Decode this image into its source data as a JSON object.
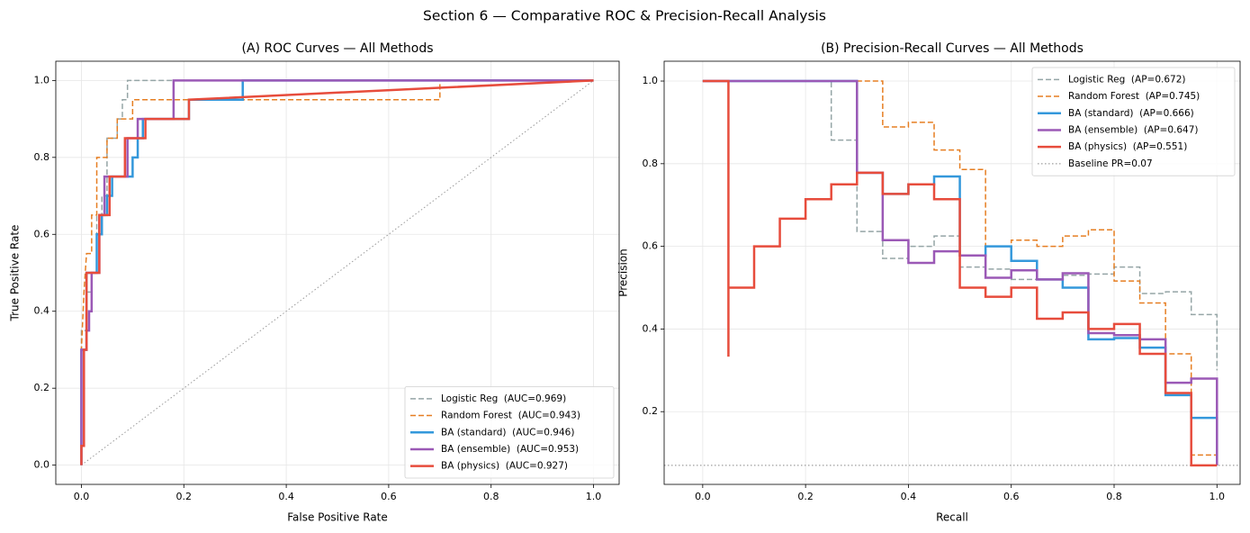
{
  "title": "Section 6 — Comparative ROC & Precision-Recall Analysis",
  "chart_data": [
    {
      "type": "line",
      "title": "(A) ROC Curves — All Methods",
      "x_label": "False Positive Rate",
      "y_label": "True Positive Rate",
      "xlim": [
        -0.05,
        1.05
      ],
      "ylim": [
        -0.05,
        1.05
      ],
      "xticks": [
        {
          "value": 0,
          "label": "0.0"
        },
        0.2,
        0.4,
        0.6,
        0.8,
        {
          "value": 1,
          "label": "1.0"
        }
      ],
      "yticks": [
        {
          "value": 0,
          "label": "0.0"
        },
        0.2,
        0.4,
        0.6,
        0.8,
        {
          "value": 1,
          "label": "1.0"
        }
      ],
      "grid": true,
      "legend": "lower right",
      "series": [
        {
          "x": [
            0,
            1
          ],
          "values": [
            0,
            1
          ],
          "color": "#999999",
          "dash": "dotted",
          "width": 1
        },
        {
          "name": "Logistic Reg  (AUC=0.969)",
          "color": "#95a5a6",
          "dash": "dashed",
          "width": 1.5,
          "x": [
            0,
            0,
            0.01,
            0.01,
            0.02,
            0.02,
            0.03,
            0.03,
            0.04,
            0.04,
            0.05,
            0.05,
            0.07,
            0.07,
            0.08,
            0.08,
            0.09,
            0.09,
            1
          ],
          "values": [
            0,
            0.35,
            0.35,
            0.45,
            0.45,
            0.5,
            0.5,
            0.65,
            0.65,
            0.7,
            0.7,
            0.85,
            0.85,
            0.9,
            0.9,
            0.95,
            0.95,
            1,
            1
          ]
        },
        {
          "name": "Random Forest  (AUC=0.943)",
          "color": "#e67e22",
          "dash": "dashed",
          "width": 1.5,
          "x": [
            0,
            0,
            0.005,
            0.01,
            0.02,
            0.02,
            0.03,
            0.03,
            0.05,
            0.05,
            0.07,
            0.07,
            0.1,
            0.1,
            0.7,
            0.7,
            1
          ],
          "values": [
            0,
            0.3,
            0.45,
            0.55,
            0.55,
            0.65,
            0.65,
            0.8,
            0.8,
            0.85,
            0.85,
            0.9,
            0.9,
            0.95,
            0.95,
            1,
            1
          ]
        },
        {
          "name": "BA (standard)  (AUC=0.946)",
          "color": "#3498db",
          "dash": "solid",
          "width": 2.5,
          "x": [
            0,
            0,
            0.01,
            0.01,
            0.03,
            0.03,
            0.04,
            0.04,
            0.05,
            0.05,
            0.06,
            0.06,
            0.1,
            0.1,
            0.11,
            0.11,
            0.12,
            0.12,
            0.21,
            0.21,
            0.315,
            0.315,
            1
          ],
          "values": [
            0,
            0.3,
            0.3,
            0.5,
            0.5,
            0.6,
            0.6,
            0.65,
            0.65,
            0.7,
            0.7,
            0.75,
            0.75,
            0.8,
            0.8,
            0.85,
            0.85,
            0.9,
            0.9,
            0.95,
            0.95,
            1,
            1
          ]
        },
        {
          "name": "BA (ensemble)  (AUC=0.953)",
          "color": "#9b59b6",
          "dash": "solid",
          "width": 2.5,
          "x": [
            0,
            0,
            0.01,
            0.01,
            0.015,
            0.015,
            0.02,
            0.02,
            0.035,
            0.035,
            0.045,
            0.045,
            0.09,
            0.09,
            0.11,
            0.11,
            0.18,
            0.18,
            1
          ],
          "values": [
            0,
            0.3,
            0.3,
            0.35,
            0.35,
            0.4,
            0.4,
            0.5,
            0.5,
            0.65,
            0.65,
            0.75,
            0.75,
            0.85,
            0.85,
            0.9,
            0.9,
            1,
            1
          ]
        },
        {
          "name": "BA (physics)  (AUC=0.927)",
          "color": "#e74c3c",
          "dash": "solid",
          "width": 2.5,
          "x": [
            0,
            0,
            0.005,
            0.005,
            0.01,
            0.01,
            0.035,
            0.035,
            0.055,
            0.055,
            0.085,
            0.085,
            0.125,
            0.125,
            0.21,
            0.21,
            1
          ],
          "values": [
            0,
            0.05,
            0.05,
            0.3,
            0.3,
            0.5,
            0.5,
            0.65,
            0.65,
            0.75,
            0.75,
            0.85,
            0.85,
            0.9,
            0.9,
            0.95,
            1
          ]
        }
      ]
    },
    {
      "type": "line",
      "title": "(B) Precision-Recall Curves — All Methods",
      "x_label": "Recall",
      "y_label": "Precision",
      "xlim": [
        -0.075,
        1.045
      ],
      "ylim": [
        0.024,
        1.048
      ],
      "xticks": [
        {
          "value": 0,
          "label": "0.0"
        },
        0.2,
        0.4,
        0.6,
        0.8,
        {
          "value": 1,
          "label": "1.0"
        }
      ],
      "yticks": [
        0.2,
        0.4,
        0.6,
        0.8,
        {
          "value": 1,
          "label": "1.0"
        }
      ],
      "grid": true,
      "legend": "upper right",
      "baseline": 0.07,
      "baseline_label": "Baseline PR=0.07",
      "baseline_color": "#888888",
      "series": [
        {
          "name": "Logistic Reg  (AP=0.672)",
          "color": "#95a5a6",
          "dash": "dashed",
          "width": 1.5,
          "x": [
            0,
            0.25,
            0.25,
            0.3,
            0.3,
            0.35,
            0.35,
            0.4,
            0.4,
            0.45,
            0.45,
            0.5,
            0.5,
            0.55,
            0.55,
            0.6,
            0.6,
            0.65,
            0.65,
            0.7,
            0.7,
            0.75,
            0.75,
            0.8,
            0.8,
            0.85,
            0.85,
            0.9,
            0.9,
            0.95,
            0.95,
            1,
            1
          ],
          "values": [
            1,
            1,
            0.857,
            0.857,
            0.636,
            0.636,
            0.571,
            0.571,
            0.6,
            0.6,
            0.625,
            0.625,
            0.55,
            0.55,
            0.545,
            0.545,
            0.52,
            0.52,
            0.52,
            0.52,
            0.53,
            0.53,
            0.533,
            0.533,
            0.55,
            0.55,
            0.486,
            0.486,
            0.49,
            0.49,
            0.435,
            0.435,
            0.3
          ]
        },
        {
          "name": "Random Forest  (AP=0.745)",
          "color": "#e67e22",
          "dash": "dashed",
          "width": 1.5,
          "x": [
            0,
            0.35,
            0.35,
            0.4,
            0.4,
            0.45,
            0.45,
            0.5,
            0.5,
            0.55,
            0.55,
            0.6,
            0.6,
            0.65,
            0.65,
            0.7,
            0.7,
            0.75,
            0.75,
            0.8,
            0.8,
            0.85,
            0.85,
            0.9,
            0.9,
            0.95,
            0.95,
            1,
            1
          ],
          "values": [
            1,
            1,
            0.889,
            0.889,
            0.9,
            0.9,
            0.833,
            0.833,
            0.786,
            0.786,
            0.6,
            0.6,
            0.615,
            0.615,
            0.6,
            0.6,
            0.625,
            0.625,
            0.64,
            0.64,
            0.516,
            0.516,
            0.463,
            0.463,
            0.34,
            0.34,
            0.095,
            0.095,
            0.07
          ]
        },
        {
          "name": "BA (standard)  (AP=0.666)",
          "color": "#3498db",
          "dash": "solid",
          "width": 2.5,
          "x": [
            0,
            0.3,
            0.3,
            0.35,
            0.35,
            0.4,
            0.4,
            0.45,
            0.45,
            0.5,
            0.5,
            0.55,
            0.55,
            0.6,
            0.6,
            0.65,
            0.65,
            0.7,
            0.7,
            0.75,
            0.75,
            0.8,
            0.8,
            0.85,
            0.85,
            0.9,
            0.9,
            0.95,
            0.95,
            1,
            1
          ],
          "values": [
            1,
            1,
            0.778,
            0.778,
            0.727,
            0.727,
            0.75,
            0.75,
            0.769,
            0.769,
            0.578,
            0.578,
            0.6,
            0.6,
            0.565,
            0.565,
            0.52,
            0.52,
            0.5,
            0.5,
            0.375,
            0.375,
            0.378,
            0.378,
            0.355,
            0.355,
            0.24,
            0.24,
            0.185,
            0.185,
            0.07
          ]
        },
        {
          "name": "BA (ensemble)  (AP=0.647)",
          "color": "#9b59b6",
          "dash": "solid",
          "width": 2.5,
          "x": [
            0,
            0.3,
            0.3,
            0.35,
            0.35,
            0.4,
            0.4,
            0.45,
            0.45,
            0.5,
            0.5,
            0.55,
            0.55,
            0.6,
            0.6,
            0.65,
            0.65,
            0.7,
            0.7,
            0.75,
            0.75,
            0.8,
            0.8,
            0.85,
            0.85,
            0.9,
            0.9,
            0.95,
            0.95,
            1,
            1
          ],
          "values": [
            1,
            1,
            0.778,
            0.778,
            0.615,
            0.615,
            0.56,
            0.56,
            0.588,
            0.588,
            0.578,
            0.578,
            0.524,
            0.524,
            0.542,
            0.542,
            0.52,
            0.52,
            0.535,
            0.535,
            0.39,
            0.39,
            0.385,
            0.385,
            0.375,
            0.375,
            0.27,
            0.27,
            0.28,
            0.28,
            0.07
          ]
        },
        {
          "name": "BA (physics)  (AP=0.551)",
          "color": "#e74c3c",
          "dash": "solid",
          "width": 2.5,
          "x": [
            0,
            0.05,
            0.05,
            0.05,
            0.1,
            0.1,
            0.15,
            0.15,
            0.2,
            0.2,
            0.25,
            0.25,
            0.3,
            0.3,
            0.35,
            0.35,
            0.4,
            0.4,
            0.45,
            0.45,
            0.5,
            0.5,
            0.55,
            0.55,
            0.6,
            0.6,
            0.65,
            0.65,
            0.7,
            0.7,
            0.75,
            0.75,
            0.8,
            0.8,
            0.85,
            0.85,
            0.9,
            0.9,
            0.95,
            0.95,
            1
          ],
          "values": [
            1,
            1,
            0.333,
            0.5,
            0.5,
            0.6,
            0.6,
            0.667,
            0.667,
            0.714,
            0.714,
            0.75,
            0.75,
            0.778,
            0.778,
            0.727,
            0.727,
            0.75,
            0.75,
            0.714,
            0.714,
            0.5,
            0.5,
            0.478,
            0.478,
            0.5,
            0.5,
            0.425,
            0.425,
            0.44,
            0.44,
            0.4,
            0.4,
            0.412,
            0.412,
            0.34,
            0.34,
            0.245,
            0.245,
            0.07,
            0.07
          ]
        }
      ]
    }
  ]
}
